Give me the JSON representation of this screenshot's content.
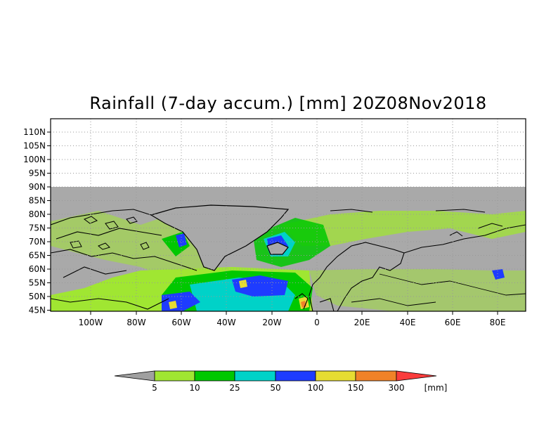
{
  "title": "Rainfall (7-day accum.) [mm] 20Z08Nov2018",
  "lat_labels": [
    "110N",
    "105N",
    "100N",
    "95N",
    "90N",
    "85N",
    "80N",
    "75N",
    "70N",
    "65N",
    "60N",
    "55N",
    "50N",
    "45N"
  ],
  "lon_labels": [
    "100W",
    "80W",
    "60W",
    "40W",
    "20W",
    "0",
    "20E",
    "40E",
    "60E",
    "80E"
  ],
  "colorbar": {
    "labels": [
      "5",
      "10",
      "25",
      "50",
      "100",
      "150",
      "300"
    ],
    "unit": "[mm]",
    "colors": [
      "#a0a0a0",
      "#a0e632",
      "#00c800",
      "#00d2c8",
      "#1e3cff",
      "#e6dc32",
      "#f08228",
      "#fa3c3c"
    ]
  },
  "map": {
    "no_data_color": "#a9a9a9",
    "land_outline_color": "#000000",
    "grid_style": "dotted"
  }
}
